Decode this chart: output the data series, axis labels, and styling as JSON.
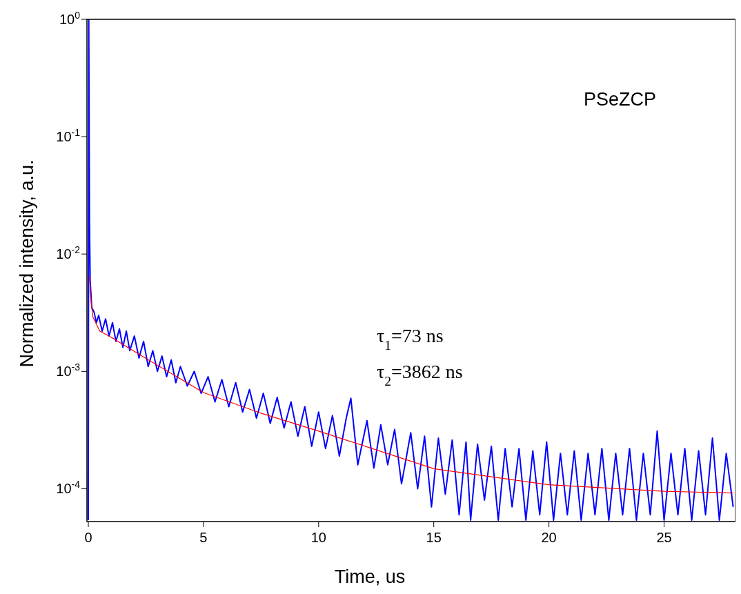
{
  "chart_data": {
    "type": "line",
    "xlabel": "Time, us",
    "ylabel": "Normalized intensity, a.u.",
    "log": "y",
    "grid": false,
    "xlim": [
      -0.06,
      28.1
    ],
    "ylim": [
      5.25e-05,
      1
    ],
    "xticks": [
      0,
      5,
      10,
      15,
      20,
      25
    ],
    "yticks": [
      {
        "value": 1,
        "label": "10$^{0}$"
      },
      {
        "value": 0.1,
        "label": "10$^{-1}$"
      },
      {
        "value": 0.01,
        "label": "10$^{-2}$"
      },
      {
        "value": 0.001,
        "label": "10$^{-3}$"
      },
      {
        "value": 0.0001,
        "label": "10$^{-4}$"
      }
    ],
    "annotations": [
      "PSeZCP",
      "τ$_{1}$=73 ns",
      "τ$_{2}$=3862 ns"
    ],
    "series": [
      {
        "color": "#0000ff",
        "x": [
          0,
          0.02,
          0.05,
          0.08,
          0.15,
          0.25,
          0.35,
          0.45,
          0.6,
          0.75,
          0.9,
          1.05,
          1.2,
          1.35,
          1.5,
          1.65,
          1.8,
          2.0,
          2.2,
          2.4,
          2.6,
          2.8,
          3.0,
          3.2,
          3.4,
          3.6,
          3.8,
          4.0,
          4.3,
          4.6,
          4.9,
          5.2,
          5.5,
          5.8,
          6.1,
          6.4,
          6.7,
          7.0,
          7.3,
          7.6,
          7.9,
          8.2,
          8.5,
          8.8,
          9.1,
          9.4,
          9.7,
          10.0,
          10.3,
          10.6,
          10.9,
          11.2,
          11.4,
          11.7,
          12.1,
          12.4,
          12.7,
          13.0,
          13.3,
          13.6,
          14.0,
          14.3,
          14.6,
          14.9,
          15.2,
          15.5,
          15.8,
          16.1,
          16.4,
          16.6,
          16.9,
          17.2,
          17.5,
          17.8,
          18.1,
          18.4,
          18.7,
          19.0,
          19.3,
          19.6,
          19.9,
          20.2,
          20.5,
          20.8,
          21.1,
          21.4,
          21.7,
          22.0,
          22.3,
          22.6,
          22.9,
          23.2,
          23.5,
          23.8,
          24.1,
          24.4,
          24.7,
          25.0,
          25.3,
          25.6,
          25.9,
          26.2,
          26.5,
          26.8,
          27.1,
          27.4,
          27.7,
          28.0
        ],
        "values": [
          5.4e-05,
          1,
          0.02,
          0.006,
          0.0035,
          0.0032,
          0.0026,
          0.003,
          0.0022,
          0.0028,
          0.002,
          0.0026,
          0.0018,
          0.0023,
          0.0016,
          0.0022,
          0.0015,
          0.002,
          0.0013,
          0.0018,
          0.0011,
          0.0015,
          0.001,
          0.00135,
          0.0009,
          0.00125,
          0.0008,
          0.0011,
          0.00075,
          0.001,
          0.00065,
          0.0009,
          0.00055,
          0.00085,
          0.0005,
          0.0008,
          0.00045,
          0.0007,
          0.0004,
          0.00065,
          0.00036,
          0.0006,
          0.00033,
          0.00055,
          0.00028,
          0.0005,
          0.00023,
          0.00045,
          0.00022,
          0.00042,
          0.00019,
          0.0004,
          0.00059,
          0.00016,
          0.00038,
          0.00015,
          0.00035,
          0.00016,
          0.00032,
          0.00011,
          0.0003,
          0.0001,
          0.00028,
          7e-05,
          0.00027,
          9e-05,
          0.00026,
          6e-05,
          0.00025,
          5.4e-05,
          0.00024,
          8e-05,
          0.00023,
          5.4e-05,
          0.00022,
          7e-05,
          0.00022,
          5.4e-05,
          0.00021,
          6e-05,
          0.00025,
          5.4e-05,
          0.0002,
          6e-05,
          0.00021,
          5.4e-05,
          0.0002,
          6e-05,
          0.00022,
          5.4e-05,
          0.0002,
          6e-05,
          0.00022,
          5.4e-05,
          0.0002,
          6e-05,
          0.00031,
          5.4e-05,
          0.0002,
          6e-05,
          0.00022,
          5.4e-05,
          0.00021,
          6e-05,
          0.00027,
          5.4e-05,
          0.0002,
          7e-05
        ]
      },
      {
        "color": "#ff0000",
        "x": [
          0.05,
          0.1,
          0.2,
          0.5,
          1,
          2.5,
          5,
          7.5,
          10,
          15,
          20,
          25,
          28
        ],
        "values": [
          0.0065,
          0.0043,
          0.0029,
          0.0022,
          0.00195,
          0.00129,
          0.00066,
          0.00044,
          0.00031,
          0.000148,
          0.000108,
          9.5e-05,
          9.2e-05
        ]
      }
    ]
  }
}
